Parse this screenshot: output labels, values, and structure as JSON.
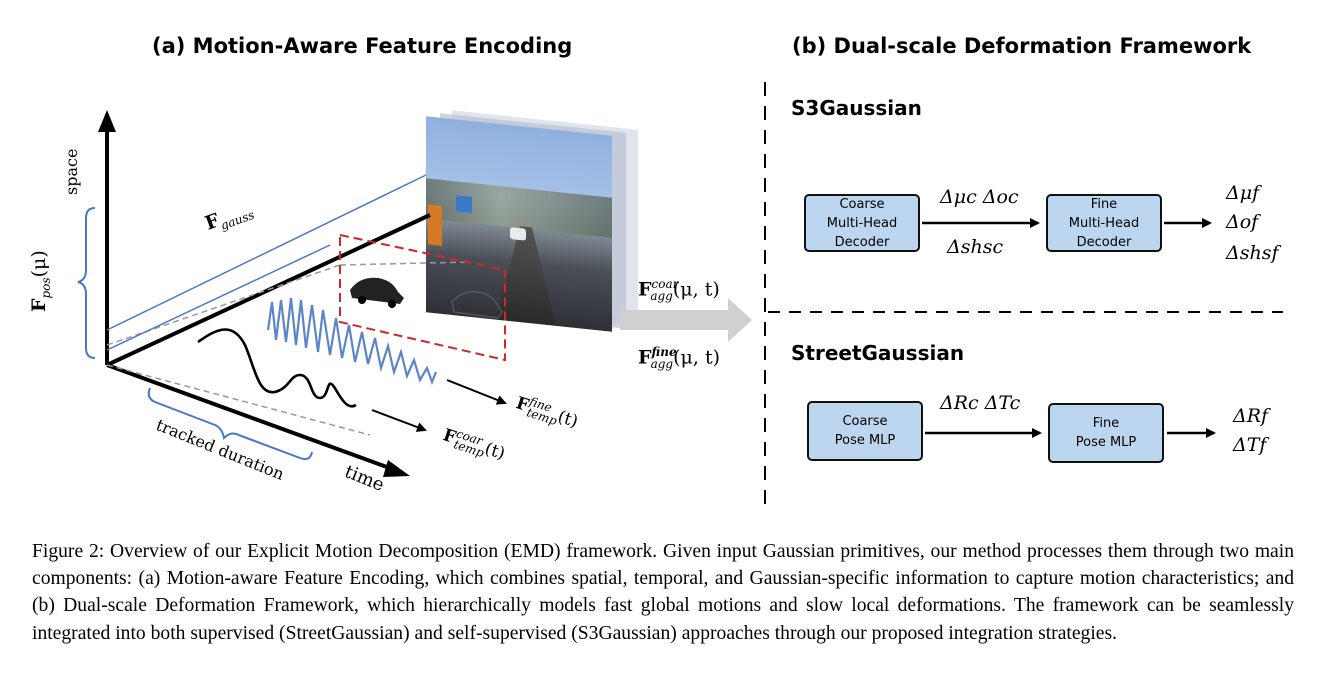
{
  "panel_a": {
    "title": "(a) Motion-Aware Feature Encoding",
    "axis_space": "space",
    "axis_time": "time",
    "tracked_duration": "tracked duration",
    "f_gauss": {
      "base": "F",
      "sub": "gauss"
    },
    "f_pos": {
      "base": "F",
      "sub": "pos",
      "arg": "(μ)"
    },
    "f_temp_fine": {
      "base": "F",
      "sup": "fine",
      "sub": "temp",
      "arg": "(t)"
    },
    "f_temp_coar": {
      "base": "F",
      "sup": "coar",
      "sub": "temp",
      "arg": "(t)"
    },
    "f_agg_coar": {
      "base": "F",
      "sup": "coar",
      "sub": "agg",
      "arg": "(μ, t)"
    },
    "f_agg_fine": {
      "base": "F",
      "sup": "fine",
      "sub": "agg",
      "arg": "(μ, t)"
    }
  },
  "panel_b": {
    "title": "(b) Dual-scale Deformation Framework",
    "s3": {
      "label": "S3Gaussian",
      "coarse_box": [
        "Coarse",
        "Multi-Head",
        "Decoder"
      ],
      "fine_box": [
        "Fine",
        "Multi-Head",
        "Decoder"
      ],
      "coarse_out_top": "Δμc  Δoc",
      "coarse_out_bottom": "Δshsc",
      "fine_out": [
        "Δμf",
        "Δof",
        "Δshsf"
      ]
    },
    "street": {
      "label": "StreetGaussian",
      "coarse_box": [
        "Coarse",
        "Pose MLP"
      ],
      "fine_box": [
        "Fine",
        "Pose MLP"
      ],
      "coarse_out_top": "ΔRc  ΔTc",
      "fine_out": [
        "ΔRf",
        "ΔTf"
      ]
    }
  },
  "colors": {
    "box_fill": "#bcd6ef",
    "wave_blue": "#5b85c8",
    "dashed_red": "#d0272a",
    "bracket_blue": "#4a78c4"
  },
  "caption": "Figure 2: Overview of our Explicit Motion Decomposition (EMD) framework. Given input Gaussian primitives, our method processes them through two main components: (a) Motion-aware Feature Encoding, which combines spatial, temporal, and Gaussian-specific information to capture motion characteristics; and (b) Dual-scale Deformation Framework, which hierarchically models fast global motions and slow local deformations. The framework can be seamlessly integrated into both supervised (StreetGaussian) and self-supervised (S3Gaussian) approaches through our proposed integration strategies."
}
